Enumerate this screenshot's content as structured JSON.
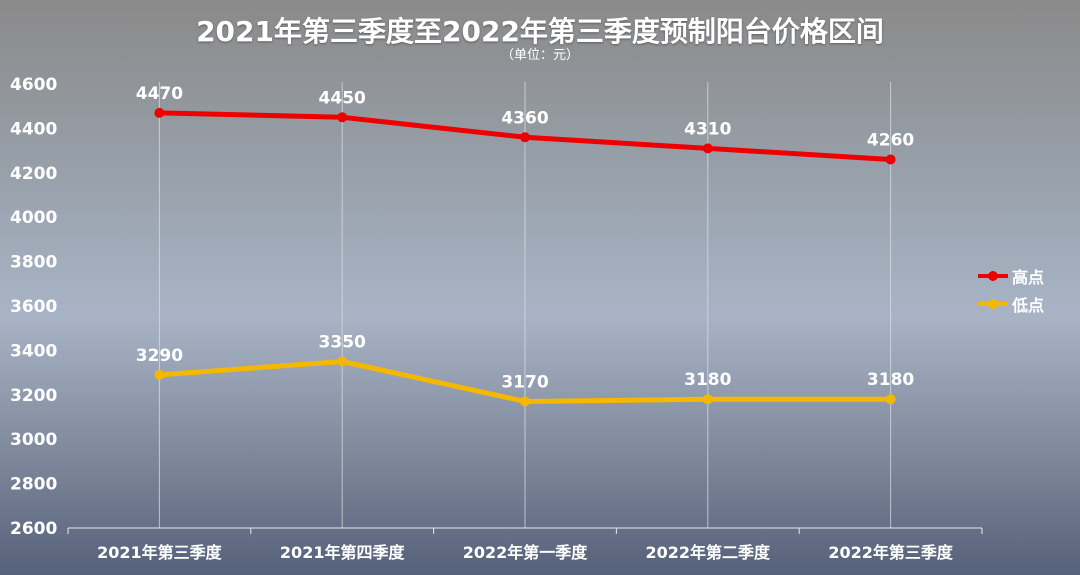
{
  "chart_data": {
    "type": "line",
    "title": "2021年第三季度至2022年第三季度预制阳台价格区间",
    "subtitle": "（单位：元）",
    "categories": [
      "2021年第三季度",
      "2021年第四季度",
      "2022年第一季度",
      "2022年第二季度",
      "2022年第三季度"
    ],
    "series": [
      {
        "name": "高点",
        "values": [
          4470,
          4450,
          4360,
          4310,
          4260
        ],
        "color": "#ee0000"
      },
      {
        "name": "低点",
        "values": [
          3290,
          3350,
          3170,
          3180,
          3180
        ],
        "color": "#f5b800"
      }
    ],
    "ylim": [
      2600,
      4600
    ],
    "yticks": [
      2600,
      2800,
      3000,
      3200,
      3400,
      3600,
      3800,
      4000,
      4200,
      4400,
      4600
    ],
    "xlabel": "",
    "ylabel": "",
    "grid": "vertical",
    "legend": "right",
    "data_labels": true
  }
}
